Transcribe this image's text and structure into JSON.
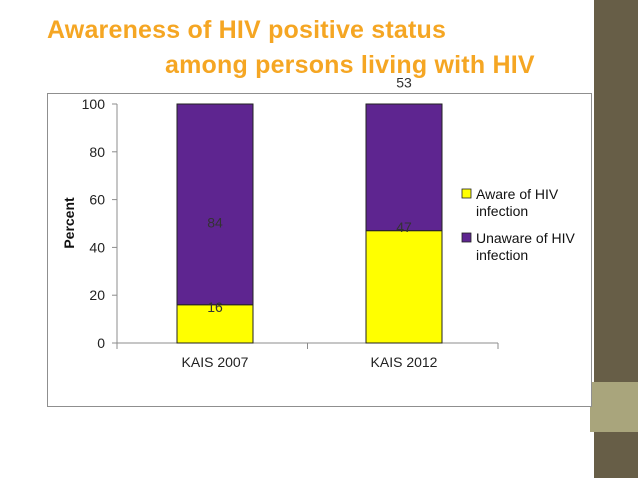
{
  "slide": {
    "title_line1": "Awareness of HIV positive status",
    "title_line2": "among persons living with HIV",
    "title_color": "#f5a623",
    "accent_color": "#675e47",
    "accent_color_2": "#a9a57c"
  },
  "chart_data": {
    "type": "bar",
    "stacked": true,
    "categories": [
      "KAIS 2007",
      "KAIS 2012"
    ],
    "series": [
      {
        "name": "Aware of HIV infection",
        "values": [
          16,
          47
        ],
        "color": "#ffff00"
      },
      {
        "name": "Unaware of HIV infection",
        "values": [
          84,
          53
        ],
        "color": "#5e2590"
      }
    ],
    "ylabel": "Percent",
    "xlabel": "",
    "ylim": [
      0,
      100
    ],
    "yticks": [
      "0",
      "20",
      "40",
      "60",
      "80",
      "100"
    ],
    "grid": false,
    "legend_position": "right",
    "legend": [
      "Aware of HIV",
      "infection",
      "Unaware of HIV",
      "infection"
    ]
  }
}
